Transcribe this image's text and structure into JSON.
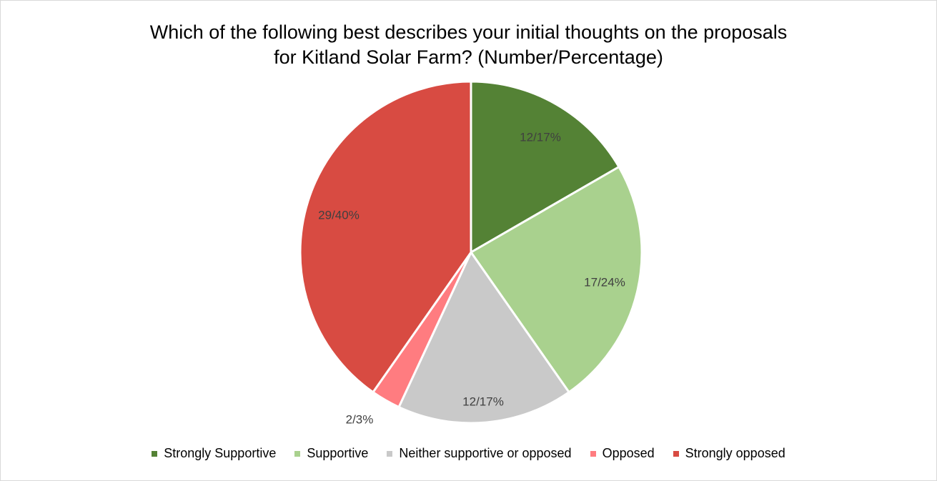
{
  "chart_data": {
    "type": "pie",
    "title_lines": [
      "Which of the following best describes your initial thoughts on the proposals",
      "for Kitland Solar Farm? (Number/Percentage)"
    ],
    "slices": [
      {
        "name": "Strongly Supportive",
        "value": 12,
        "label": "12/17%",
        "color": "#548235"
      },
      {
        "name": "Supportive",
        "value": 17,
        "label": "17/24%",
        "color": "#a9d18e"
      },
      {
        "name": "Neither supportive or opposed",
        "value": 12,
        "label": "12/17%",
        "color": "#c9c9c9"
      },
      {
        "name": "Opposed",
        "value": 2,
        "label": "2/3%",
        "color": "#ff7c80"
      },
      {
        "name": "Strongly opposed",
        "value": 29,
        "label": "29/40%",
        "color": "#d84b42"
      }
    ],
    "start_angle": "12 o'clock",
    "direction": "clockwise",
    "legend_position": "bottom"
  }
}
